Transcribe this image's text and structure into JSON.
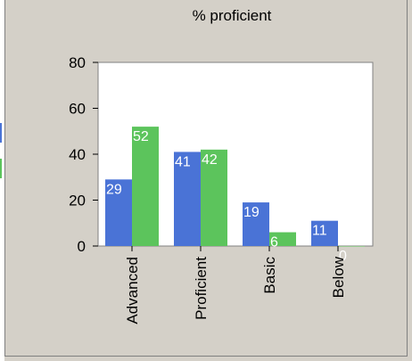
{
  "chart_data": {
    "type": "bar",
    "title": "% proficient",
    "categories": [
      "Advanced",
      "Proficient",
      "Basic",
      "Below"
    ],
    "series": [
      {
        "values": [
          29,
          41,
          19,
          11
        ],
        "color": "#4a73d6"
      },
      {
        "values": [
          52,
          42,
          6,
          0
        ],
        "color": "#5cc45c"
      }
    ],
    "yticks": [
      "0",
      "20",
      "40",
      "60",
      "80"
    ],
    "ylim": [
      0,
      80
    ],
    "xlabel": "",
    "ylabel": "",
    "grid": false,
    "legend": "none"
  }
}
